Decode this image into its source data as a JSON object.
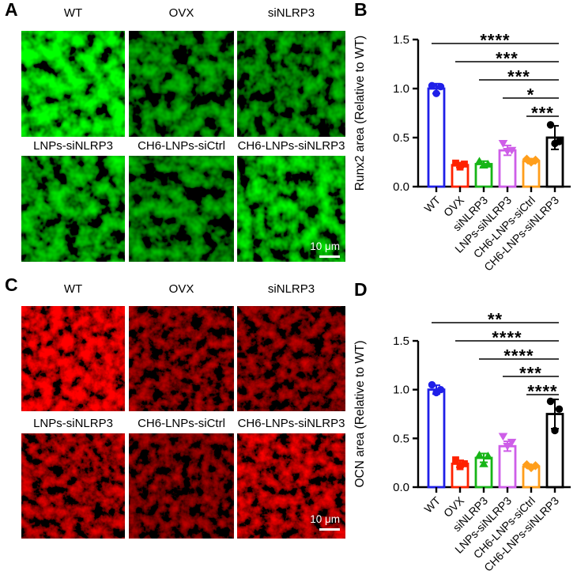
{
  "panels": {
    "A": {
      "letter": "A",
      "row1_labels": [
        "WT",
        "OVX",
        "siNLRP3"
      ],
      "row2_labels": [
        "LNPs-siNLRP3",
        "CH6-LNPs-siCtrl",
        "CH6-LNPs-siNLRP3"
      ],
      "scale_bar_label": "10 μm",
      "channel": "green",
      "intensities": [
        "high",
        "low",
        "low",
        "medium",
        "low",
        "medium-high"
      ]
    },
    "B": {
      "letter": "B"
    },
    "C": {
      "letter": "C",
      "row1_labels": [
        "WT",
        "OVX",
        "siNLRP3"
      ],
      "row2_labels": [
        "LNPs-siNLRP3",
        "CH6-LNPs-siCtrl",
        "CH6-LNPs-siNLRP3"
      ],
      "scale_bar_label": "10 μm",
      "channel": "red",
      "intensities": [
        "high",
        "low",
        "low",
        "medium",
        "very-low",
        "medium-high"
      ]
    },
    "D": {
      "letter": "D"
    }
  },
  "chart_data": [
    {
      "panel": "B",
      "type": "bar",
      "title": "",
      "ylabel": "Runx2 area (Relative to WT)",
      "xlabel": "",
      "categories": [
        "WT",
        "OVX",
        "siNLRP3",
        "LNPs-siNLRP3",
        "CH6-LNPs-siCtrl",
        "CH6-LNPs-siNLRP3"
      ],
      "values": [
        1.0,
        0.22,
        0.23,
        0.37,
        0.26,
        0.5
      ],
      "errors": [
        0.05,
        0.025,
        0.03,
        0.05,
        0.025,
        0.12
      ],
      "points": [
        [
          1.03,
          1.02,
          0.95
        ],
        [
          0.24,
          0.23,
          0.2
        ],
        [
          0.26,
          0.23,
          0.22
        ],
        [
          0.44,
          0.37,
          0.36
        ],
        [
          0.28,
          0.27,
          0.25
        ],
        [
          0.63,
          0.46,
          0.44
        ]
      ],
      "bar_colors": [
        "#1f1fe8",
        "#ff2200",
        "#17b517",
        "#ce5ee8",
        "#ff9e1b",
        "#000000"
      ],
      "markers": [
        "circle",
        "square",
        "triangle-up",
        "triangle-down",
        "diamond",
        "circle"
      ],
      "ylim": [
        0,
        1.5
      ],
      "yticks": [
        "0.0",
        "0.5",
        "1.0",
        "1.5"
      ],
      "grid": false,
      "legend": "none",
      "significance": [
        {
          "from": "WT",
          "to": "CH6-LNPs-siNLRP3",
          "label": "****"
        },
        {
          "from": "OVX",
          "to": "CH6-LNPs-siNLRP3",
          "label": "***"
        },
        {
          "from": "siNLRP3",
          "to": "CH6-LNPs-siNLRP3",
          "label": "***"
        },
        {
          "from": "LNPs-siNLRP3",
          "to": "CH6-LNPs-siNLRP3",
          "label": "*"
        },
        {
          "from": "CH6-LNPs-siCtrl",
          "to": "CH6-LNPs-siNLRP3",
          "label": "***"
        }
      ]
    },
    {
      "panel": "D",
      "type": "bar",
      "title": "",
      "ylabel": "OCN area (Relative to WT)",
      "xlabel": "",
      "categories": [
        "WT",
        "OVX",
        "siNLRP3",
        "LNPs-siNLRP3",
        "CH6-LNPs-siCtrl",
        "CH6-LNPs-siNLRP3"
      ],
      "values": [
        1.0,
        0.24,
        0.3,
        0.42,
        0.21,
        0.75
      ],
      "errors": [
        0.045,
        0.035,
        0.045,
        0.05,
        0.02,
        0.15
      ],
      "points": [
        [
          1.05,
          1.0,
          0.97
        ],
        [
          0.28,
          0.24,
          0.21
        ],
        [
          0.33,
          0.32,
          0.24
        ],
        [
          0.52,
          0.46,
          0.42
        ],
        [
          0.23,
          0.22,
          0.2
        ],
        [
          0.88,
          0.8,
          0.58
        ]
      ],
      "bar_colors": [
        "#1f1fe8",
        "#ff2200",
        "#17b517",
        "#ce5ee8",
        "#ff9e1b",
        "#000000"
      ],
      "markers": [
        "circle",
        "square",
        "triangle-up",
        "triangle-down",
        "diamond",
        "circle"
      ],
      "ylim": [
        0,
        1.5
      ],
      "yticks": [
        "0.0",
        "0.5",
        "1.0",
        "1.5"
      ],
      "grid": false,
      "legend": "none",
      "significance": [
        {
          "from": "WT",
          "to": "CH6-LNPs-siNLRP3",
          "label": "**"
        },
        {
          "from": "OVX",
          "to": "CH6-LNPs-siNLRP3",
          "label": "****"
        },
        {
          "from": "siNLRP3",
          "to": "CH6-LNPs-siNLRP3",
          "label": "****"
        },
        {
          "from": "LNPs-siNLRP3",
          "to": "CH6-LNPs-siNLRP3",
          "label": "***"
        },
        {
          "from": "CH6-LNPs-siCtrl",
          "to": "CH6-LNPs-siNLRP3",
          "label": "****"
        }
      ]
    }
  ]
}
